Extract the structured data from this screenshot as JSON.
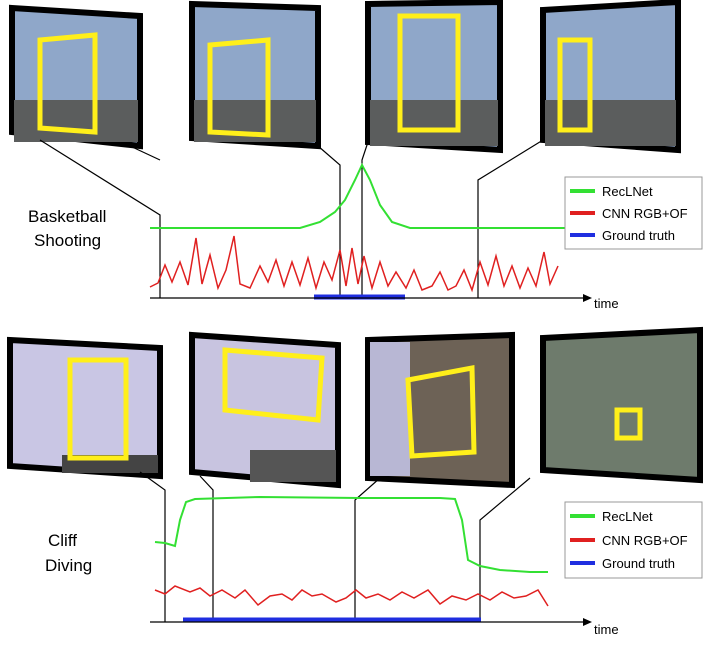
{
  "panels": [
    {
      "label_lines": [
        "Basketball",
        "Shooting"
      ],
      "legend": [
        "RecLNet",
        "CNN RGB+OF",
        "Ground truth"
      ],
      "axis_label": "time"
    },
    {
      "label_lines": [
        "Cliff",
        "Diving"
      ],
      "legend": [
        "RecLNet",
        "CNN RGB+OF",
        "Ground truth"
      ],
      "axis_label": "time"
    }
  ]
}
